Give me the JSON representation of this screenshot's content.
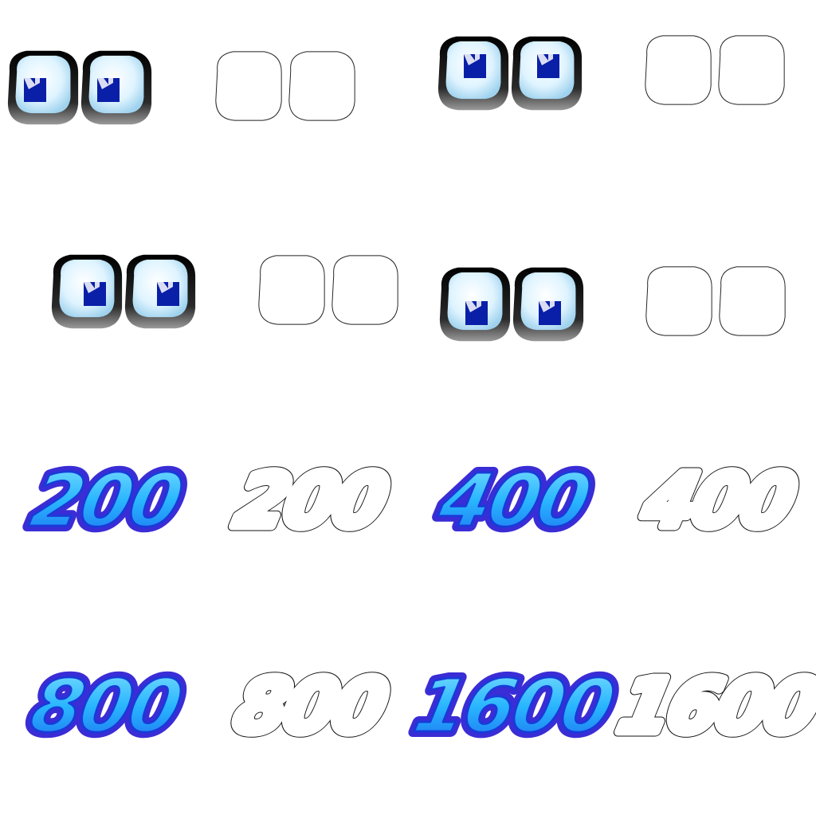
{
  "sprite_sheet": {
    "eyes_sprites": [
      {
        "name": "eyes-look-left",
        "pupil": "left"
      },
      {
        "name": "eyes-look-up",
        "pupil": "up"
      },
      {
        "name": "eyes-look-right",
        "pupil": "right"
      },
      {
        "name": "eyes-look-down",
        "pupil": "down"
      }
    ],
    "score_sprites": [
      {
        "label": "200"
      },
      {
        "label": "400"
      },
      {
        "label": "800"
      },
      {
        "label": "1600"
      }
    ],
    "colors": {
      "eye_white": "#dff4ff",
      "eye_shadow": "#2a2a2a",
      "pupil": "#0a1fa8",
      "score_fill": "#29b6ff",
      "score_dark": "#1b39d8",
      "score_outline": "#3a2dd6"
    }
  }
}
